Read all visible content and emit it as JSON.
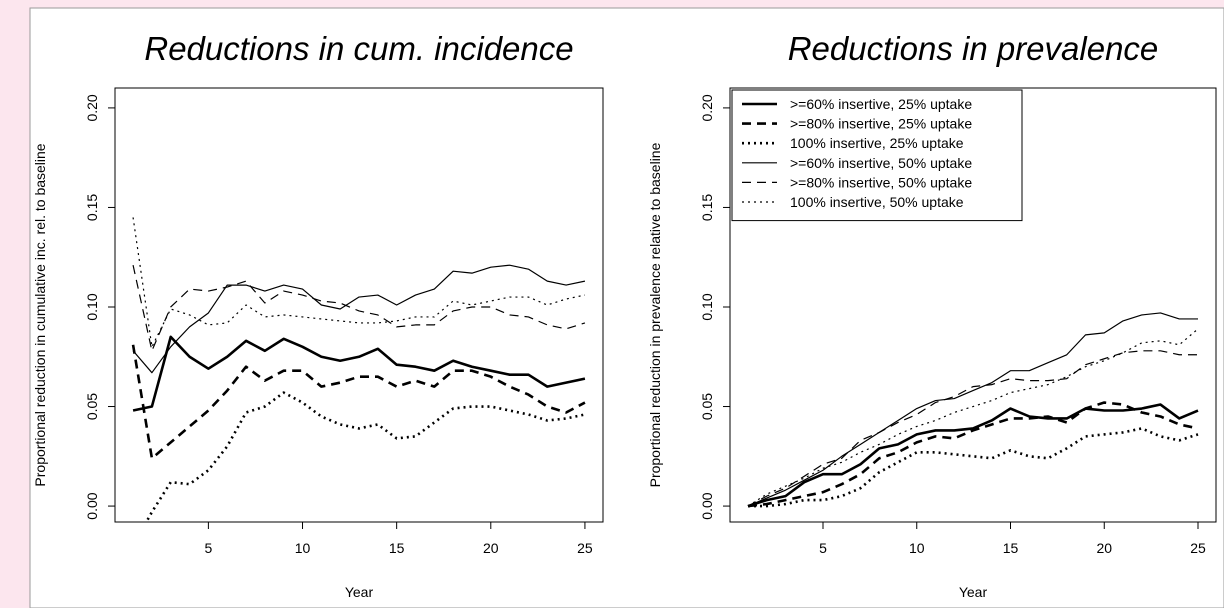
{
  "chart_data": [
    {
      "type": "line",
      "title": "Reductions in cum. incidence",
      "xlabel": "Year",
      "ylabel": "Proportional reduction in cumulative inc. rel. to baseline",
      "x": [
        1,
        2,
        3,
        4,
        5,
        6,
        7,
        8,
        9,
        10,
        11,
        12,
        13,
        14,
        15,
        16,
        17,
        18,
        19,
        20,
        21,
        22,
        23,
        24,
        25
      ],
      "xlim": [
        0.04,
        25.96
      ],
      "ylim": [
        -0.008,
        0.21
      ],
      "xticks": [
        5,
        10,
        15,
        20,
        25
      ],
      "yticks": [
        {
          "value": 0,
          "label": "0.00"
        },
        {
          "value": 0.05,
          "label": "0.05"
        },
        {
          "value": 0.1,
          "label": "0.10"
        },
        {
          "value": 0.15,
          "label": "0.15"
        },
        {
          "value": 0.2,
          "label": "0.20"
        }
      ],
      "series": [
        {
          "color": "#000000",
          "dash": "solid",
          "width": 2.6,
          "values": [
            0.048,
            0.05,
            0.085,
            0.075,
            0.069,
            0.075,
            0.083,
            0.078,
            0.084,
            0.08,
            0.075,
            0.073,
            0.075,
            0.079,
            0.071,
            0.07,
            0.068,
            0.073,
            0.07,
            0.068,
            0.066,
            0.066,
            0.06,
            0.062,
            0.064
          ]
        },
        {
          "color": "#000000",
          "dash": "dashed",
          "width": 2.6,
          "values": [
            0.081,
            0.024,
            0.032,
            0.04,
            0.048,
            0.058,
            0.07,
            0.063,
            0.068,
            0.068,
            0.06,
            0.062,
            0.065,
            0.065,
            0.06,
            0.063,
            0.06,
            0.068,
            0.068,
            0.065,
            0.06,
            0.056,
            0.05,
            0.047,
            0.052
          ]
        },
        {
          "color": "#000000",
          "dash": "dotted",
          "width": 2.6,
          "values": [
            -0.02,
            -0.003,
            0.012,
            0.011,
            0.018,
            0.03,
            0.047,
            0.05,
            0.057,
            0.052,
            0.045,
            0.041,
            0.039,
            0.041,
            0.034,
            0.035,
            0.042,
            0.049,
            0.05,
            0.05,
            0.048,
            0.046,
            0.043,
            0.044,
            0.046
          ]
        },
        {
          "color": "#000000",
          "dash": "solid",
          "width": 1.2,
          "values": [
            0.078,
            0.067,
            0.08,
            0.09,
            0.097,
            0.111,
            0.111,
            0.108,
            0.111,
            0.109,
            0.101,
            0.099,
            0.105,
            0.106,
            0.101,
            0.106,
            0.109,
            0.118,
            0.117,
            0.12,
            0.121,
            0.119,
            0.113,
            0.111,
            0.113
          ]
        },
        {
          "color": "#000000",
          "dash": "dashed",
          "width": 1.2,
          "values": [
            0.121,
            0.078,
            0.1,
            0.109,
            0.108,
            0.11,
            0.113,
            0.102,
            0.108,
            0.106,
            0.103,
            0.102,
            0.098,
            0.096,
            0.09,
            0.091,
            0.091,
            0.098,
            0.1,
            0.1,
            0.096,
            0.095,
            0.091,
            0.089,
            0.092
          ]
        },
        {
          "color": "#000000",
          "dash": "dotted",
          "width": 1.2,
          "values": [
            0.145,
            0.08,
            0.099,
            0.096,
            0.091,
            0.092,
            0.101,
            0.095,
            0.096,
            0.095,
            0.094,
            0.093,
            0.092,
            0.092,
            0.093,
            0.095,
            0.095,
            0.103,
            0.101,
            0.103,
            0.105,
            0.105,
            0.101,
            0.104,
            0.106
          ]
        }
      ]
    },
    {
      "type": "line",
      "title": "Reductions in prevalence",
      "xlabel": "Year",
      "ylabel": "Proportional reduction in prevalence relative to baseline",
      "legend": "top-left",
      "x": [
        1,
        2,
        3,
        4,
        5,
        6,
        7,
        8,
        9,
        10,
        11,
        12,
        13,
        14,
        15,
        16,
        17,
        18,
        19,
        20,
        21,
        22,
        23,
        24,
        25
      ],
      "xlim": [
        0.04,
        25.96
      ],
      "ylim": [
        -0.008,
        0.21
      ],
      "xticks": [
        5,
        10,
        15,
        20,
        25
      ],
      "yticks": [
        {
          "value": 0,
          "label": "0.00"
        },
        {
          "value": 0.05,
          "label": "0.05"
        },
        {
          "value": 0.1,
          "label": "0.10"
        },
        {
          "value": 0.15,
          "label": "0.15"
        },
        {
          "value": 0.2,
          "label": "0.20"
        }
      ],
      "series": [
        {
          "name": ">=60% insertive, 25% uptake",
          "color": "#000000",
          "dash": "solid",
          "width": 2.6,
          "values": [
            0,
            0.003,
            0.005,
            0.012,
            0.016,
            0.016,
            0.021,
            0.029,
            0.031,
            0.036,
            0.038,
            0.038,
            0.039,
            0.043,
            0.049,
            0.045,
            0.044,
            0.044,
            0.049,
            0.048,
            0.048,
            0.049,
            0.051,
            0.044,
            0.048
          ]
        },
        {
          "name": ">=80% insertive, 25% uptake",
          "color": "#000000",
          "dash": "dashed",
          "width": 2.6,
          "values": [
            0,
            0.001,
            0.003,
            0.005,
            0.007,
            0.011,
            0.016,
            0.024,
            0.027,
            0.032,
            0.035,
            0.034,
            0.038,
            0.041,
            0.044,
            0.044,
            0.045,
            0.042,
            0.049,
            0.052,
            0.051,
            0.047,
            0.045,
            0.041,
            0.039
          ]
        },
        {
          "name": "100% insertive, 25% uptake",
          "color": "#000000",
          "dash": "dotted",
          "width": 2.6,
          "values": [
            0,
            0,
            0.001,
            0.003,
            0.003,
            0.005,
            0.009,
            0.017,
            0.022,
            0.027,
            0.027,
            0.026,
            0.025,
            0.024,
            0.028,
            0.025,
            0.024,
            0.029,
            0.035,
            0.036,
            0.037,
            0.039,
            0.035,
            0.033,
            0.036
          ]
        },
        {
          "name": ">=60% insertive, 50% uptake",
          "color": "#000000",
          "dash": "solid",
          "width": 1.2,
          "values": [
            0,
            0.004,
            0.008,
            0.013,
            0.018,
            0.025,
            0.031,
            0.037,
            0.043,
            0.049,
            0.053,
            0.054,
            0.058,
            0.062,
            0.068,
            0.068,
            0.072,
            0.076,
            0.086,
            0.087,
            0.093,
            0.096,
            0.097,
            0.094,
            0.094
          ]
        },
        {
          "name": ">=80% insertive, 50% uptake",
          "color": "#000000",
          "dash": "dashed",
          "width": 1.2,
          "values": [
            0,
            0.005,
            0.009,
            0.015,
            0.021,
            0.024,
            0.033,
            0.037,
            0.042,
            0.046,
            0.052,
            0.055,
            0.06,
            0.061,
            0.064,
            0.063,
            0.063,
            0.064,
            0.071,
            0.074,
            0.077,
            0.078,
            0.078,
            0.076,
            0.076
          ]
        },
        {
          "name": "100% insertive, 50% uptake",
          "color": "#000000",
          "dash": "dotted",
          "width": 1.2,
          "values": [
            0,
            0.006,
            0.01,
            0.014,
            0.019,
            0.022,
            0.027,
            0.031,
            0.036,
            0.04,
            0.043,
            0.047,
            0.05,
            0.053,
            0.057,
            0.059,
            0.061,
            0.065,
            0.07,
            0.073,
            0.077,
            0.082,
            0.083,
            0.081,
            0.089
          ]
        }
      ]
    }
  ]
}
